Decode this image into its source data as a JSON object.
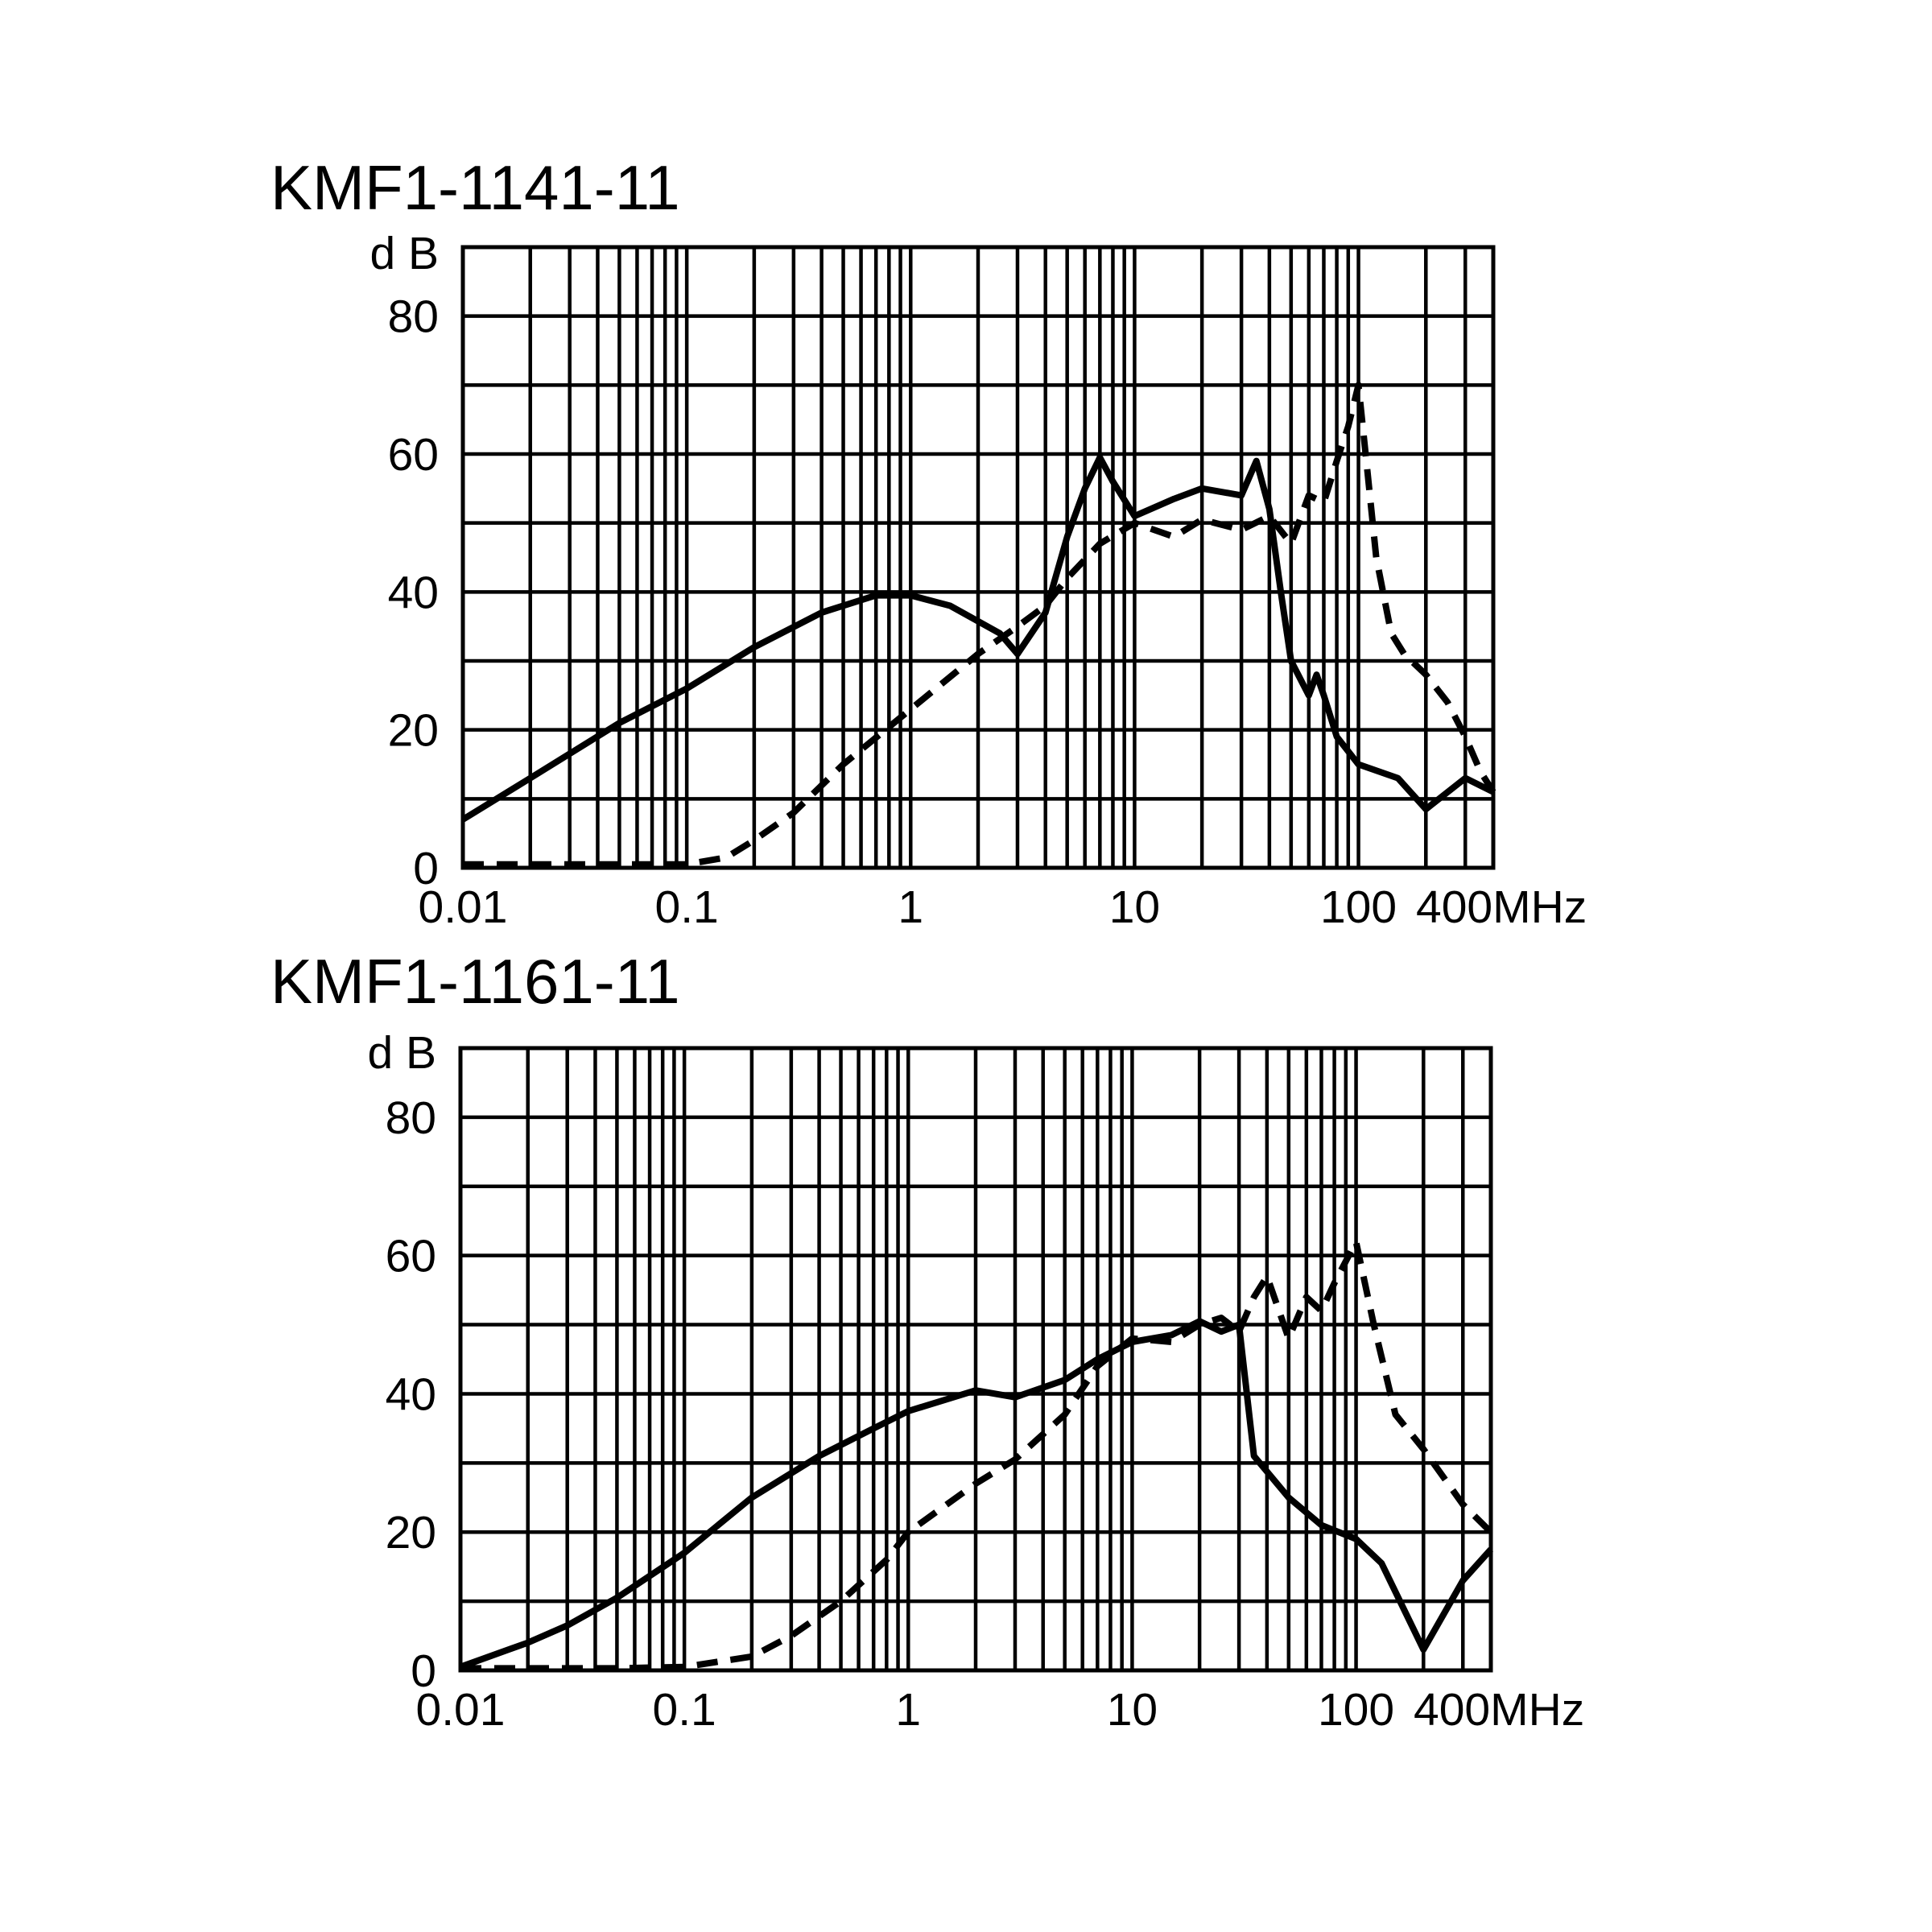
{
  "chart_data": [
    {
      "type": "line",
      "title": "KMF1-1141-11",
      "ylabel": "d B",
      "x_scale": "log",
      "xlim": [
        0.01,
        400
      ],
      "ylim": [
        0,
        90
      ],
      "grid": true,
      "y_ticks": [
        "0",
        "20",
        "40",
        "60",
        "80"
      ],
      "x_ticks": [
        "0.01",
        "0.1",
        "1",
        "10",
        "100",
        "400MHz"
      ],
      "x_tick_values": [
        0.01,
        0.1,
        1,
        10,
        100,
        400
      ],
      "series": [
        {
          "style": "solid",
          "x": [
            0.01,
            0.02,
            0.05,
            0.1,
            0.2,
            0.4,
            0.7,
            1,
            1.5,
            2.5,
            3,
            4,
            5,
            6,
            7,
            8,
            10,
            15,
            20,
            30,
            35,
            40,
            45,
            50,
            60,
            65,
            70,
            80,
            100,
            150,
            200,
            300,
            400
          ],
          "y": [
            7,
            13,
            21,
            26,
            32,
            37,
            39.5,
            39.5,
            38,
            34,
            31,
            37,
            48,
            55,
            59.5,
            56,
            51,
            53.5,
            55,
            54,
            59,
            52,
            40,
            30,
            25,
            28,
            25,
            19,
            15,
            13,
            8.5,
            13,
            11
          ]
        },
        {
          "style": "dashed",
          "x": [
            0.01,
            0.05,
            0.1,
            0.15,
            0.2,
            0.3,
            0.5,
            1,
            2,
            3,
            4,
            5,
            7,
            10,
            15,
            20,
            30,
            40,
            50,
            60,
            70,
            80,
            90,
            100,
            110,
            120,
            140,
            160,
            200,
            250,
            300,
            350,
            400
          ],
          "y": [
            0.5,
            0.5,
            0.5,
            1.5,
            4,
            8,
            15,
            23,
            31,
            35,
            38,
            42,
            47,
            50,
            48,
            50.5,
            49,
            51,
            47,
            54,
            53,
            59,
            64,
            70,
            57,
            45,
            34,
            31,
            28,
            24,
            19,
            14,
            11
          ]
        }
      ]
    },
    {
      "type": "line",
      "title": "KMF1-1161-11",
      "ylabel": "d B",
      "x_scale": "log",
      "xlim": [
        0.01,
        400
      ],
      "ylim": [
        0,
        90
      ],
      "grid": true,
      "y_ticks": [
        "0",
        "20",
        "40",
        "60",
        "80"
      ],
      "x_ticks": [
        "0.01",
        "0.1",
        "1",
        "10",
        "100",
        "400MHz"
      ],
      "x_tick_values": [
        0.01,
        0.1,
        1,
        10,
        100,
        400
      ],
      "series": [
        {
          "style": "solid",
          "x": [
            0.01,
            0.02,
            0.03,
            0.05,
            0.1,
            0.2,
            0.4,
            0.7,
            1,
            2,
            3,
            5,
            7,
            10,
            15,
            20,
            25,
            30,
            35,
            50,
            70,
            100,
            130,
            200,
            300,
            400
          ],
          "y": [
            0.5,
            4,
            6.5,
            10.5,
            17,
            25,
            31,
            35,
            37.5,
            40.5,
            39.5,
            42,
            45,
            47.5,
            48.5,
            50.5,
            49,
            50,
            31,
            25,
            21,
            19,
            15.5,
            3,
            13,
            17.5
          ]
        },
        {
          "style": "dashed",
          "x": [
            0.01,
            0.05,
            0.1,
            0.2,
            0.3,
            0.5,
            0.8,
            1,
            2,
            3,
            5,
            7,
            10,
            15,
            20,
            25,
            30,
            35,
            40,
            50,
            60,
            70,
            80,
            100,
            120,
            150,
            200,
            300,
            400
          ],
          "y": [
            0.3,
            0.3,
            0.5,
            2,
            5,
            10,
            16,
            20,
            27,
            30.5,
            37,
            44,
            48,
            47.5,
            50,
            51,
            49,
            54,
            57,
            48,
            54,
            52,
            56,
            62,
            50,
            37,
            32,
            24,
            20
          ]
        }
      ]
    }
  ]
}
